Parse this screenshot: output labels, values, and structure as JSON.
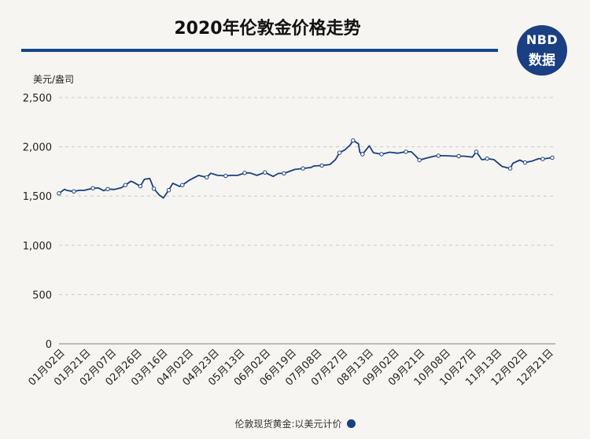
{
  "header": {
    "title": "2020年伦敦金价格走势",
    "logo_top": "NBD",
    "logo_bottom": "数据"
  },
  "colors": {
    "line": "#1a3f82",
    "rule": "#14468c",
    "background": "#f7f5f1",
    "grid": "#c9c9c9"
  },
  "chart_data": {
    "type": "line",
    "title": "2020年伦敦金价格走势",
    "ylabel": "美元/盎司",
    "xlabel": "",
    "ylim": [
      0,
      2500
    ],
    "yticks": [
      0,
      500,
      1000,
      1500,
      2000,
      2500
    ],
    "ytick_labels": [
      "0",
      "500",
      "1,000",
      "1,500",
      "2,000",
      "2,500"
    ],
    "grid": "horizontal dashed",
    "legend_position": "bottom-center",
    "xtick_labels": [
      "01月02日",
      "01月21日",
      "02月07日",
      "02月26日",
      "03月16日",
      "04月02日",
      "04月23日",
      "05月13日",
      "06月02日",
      "06月19日",
      "07月08日",
      "07月27日",
      "08月13日",
      "09月02日",
      "09月21日",
      "10月08日",
      "10月27日",
      "11月13日",
      "12月02日",
      "12月21日"
    ],
    "series": [
      {
        "name": "伦敦现货黄金:以美元计价",
        "x": [
          "01-02",
          "01-06",
          "01-08",
          "01-13",
          "01-17",
          "01-21",
          "01-27",
          "01-31",
          "02-04",
          "02-07",
          "02-12",
          "02-17",
          "02-20",
          "02-24",
          "02-26",
          "03-02",
          "03-05",
          "03-09",
          "03-12",
          "03-16",
          "03-19",
          "03-23",
          "03-26",
          "03-31",
          "04-02",
          "04-07",
          "04-14",
          "04-20",
          "04-23",
          "04-28",
          "05-04",
          "05-08",
          "05-13",
          "05-18",
          "05-22",
          "05-27",
          "06-02",
          "06-08",
          "06-12",
          "06-16",
          "06-19",
          "06-24",
          "06-30",
          "07-06",
          "07-08",
          "07-14",
          "07-20",
          "07-24",
          "07-27",
          "07-31",
          "08-04",
          "08-06",
          "08-10",
          "08-11",
          "08-13",
          "08-18",
          "08-21",
          "08-27",
          "09-02",
          "09-08",
          "09-14",
          "09-18",
          "09-21",
          "09-24",
          "09-29",
          "10-05",
          "10-08",
          "10-13",
          "10-19",
          "10-23",
          "10-27",
          "11-02",
          "11-05",
          "11-09",
          "11-10",
          "11-13",
          "11-18",
          "11-24",
          "11-30",
          "12-02",
          "12-07",
          "12-11",
          "12-16",
          "12-21",
          "12-24",
          "12-31"
        ],
        "values": [
          1527,
          1568,
          1557,
          1547,
          1558,
          1559,
          1580,
          1582,
          1555,
          1570,
          1567,
          1585,
          1612,
          1650,
          1640,
          1600,
          1670,
          1678,
          1575,
          1510,
          1480,
          1560,
          1630,
          1598,
          1612,
          1660,
          1710,
          1690,
          1732,
          1710,
          1705,
          1710,
          1710,
          1735,
          1735,
          1710,
          1740,
          1700,
          1730,
          1730,
          1745,
          1770,
          1780,
          1790,
          1805,
          1810,
          1820,
          1870,
          1940,
          1970,
          2020,
          2065,
          2030,
          1945,
          1925,
          2010,
          1940,
          1925,
          1945,
          1935,
          1950,
          1950,
          1910,
          1865,
          1885,
          1905,
          1910,
          1910,
          1905,
          1905,
          1905,
          1895,
          1950,
          1870,
          1870,
          1880,
          1870,
          1800,
          1780,
          1832,
          1865,
          1840,
          1855,
          1880,
          1876,
          1890
        ]
      }
    ]
  },
  "legend": {
    "label": "伦敦现货黄金:以美元计价"
  }
}
